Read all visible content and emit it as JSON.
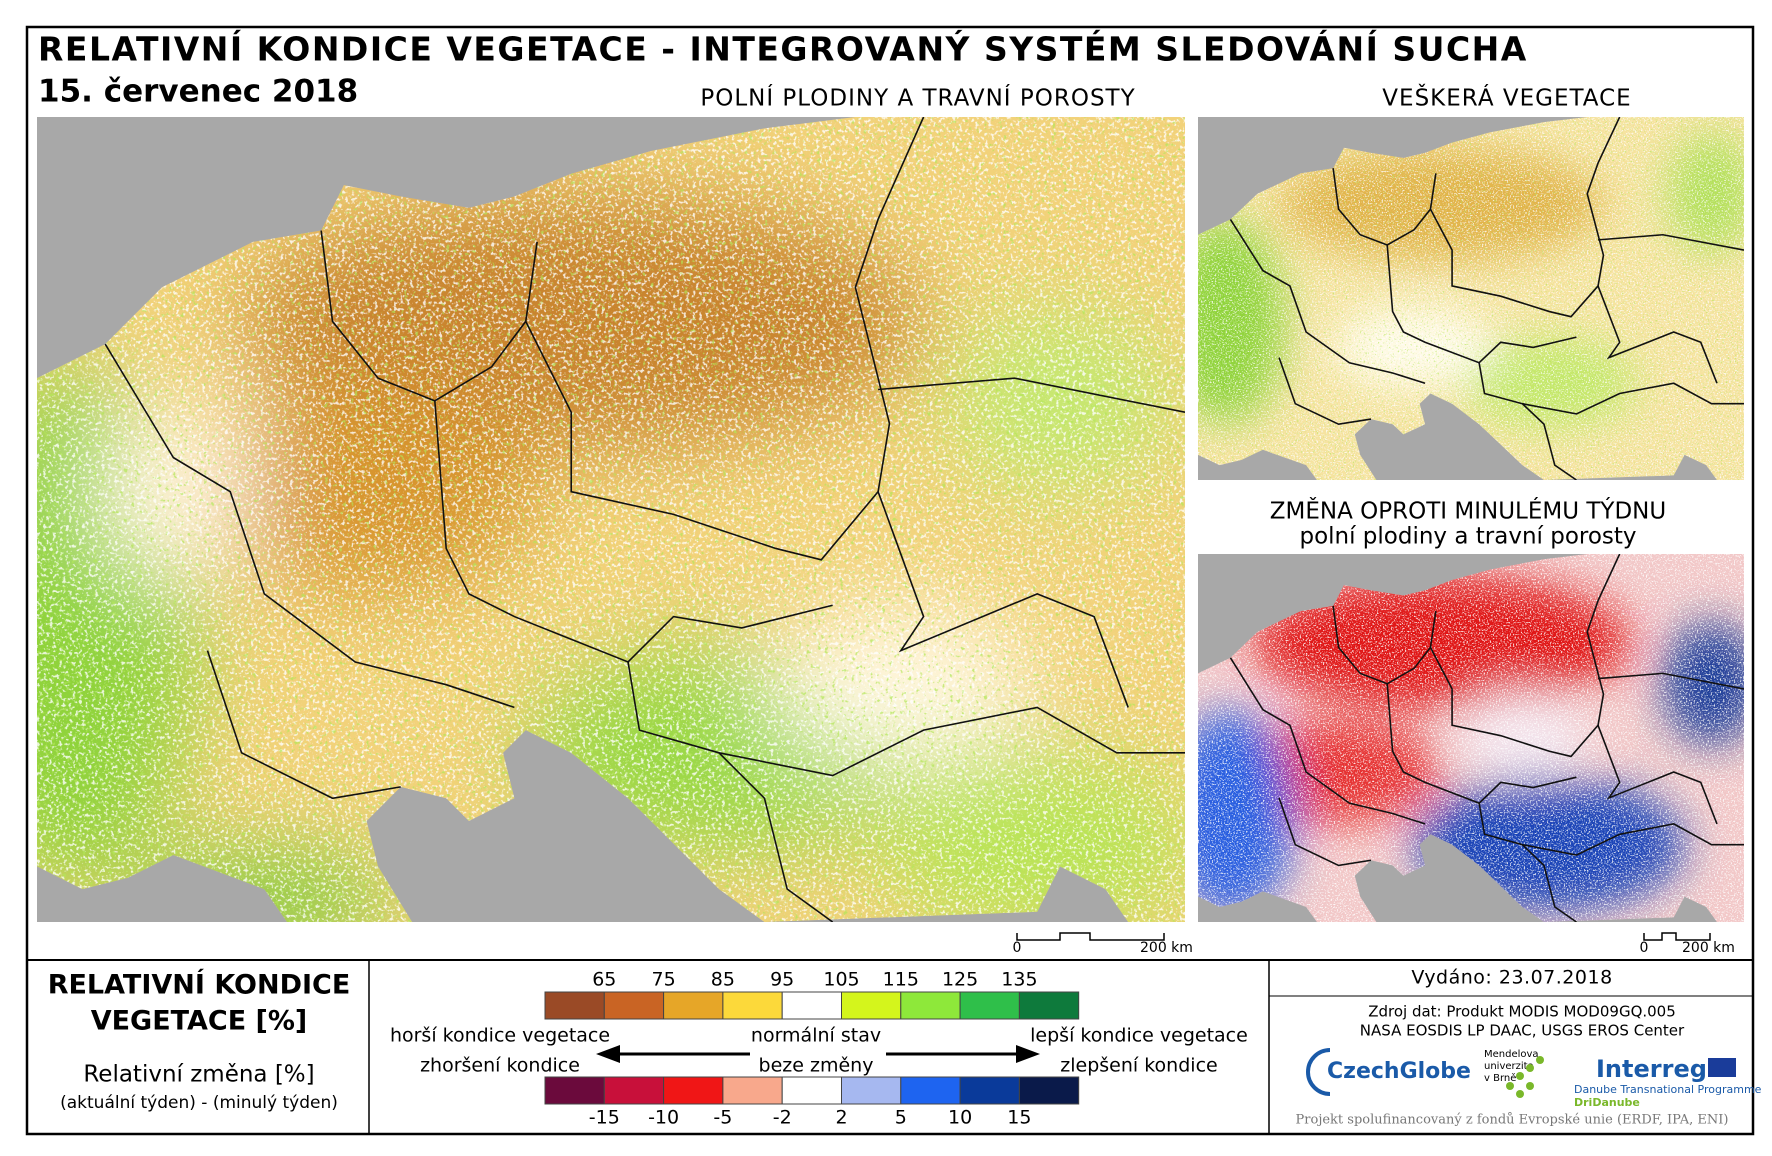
{
  "header": {
    "title": "RELATIVNÍ KONDICE VEGETACE - INTEGROVANÝ SYSTÉM SLEDOVÁNÍ SUCHA",
    "date": "15. červenec 2018"
  },
  "maps": {
    "main": {
      "title": "POLNÍ PLODINY A TRAVNÍ POROSTY",
      "scale": [
        "0",
        "200 km"
      ]
    },
    "all": {
      "title": "VEŠKERÁ VEGETACE"
    },
    "change": {
      "title": "ZMĚNA OPROTI MINULÉMU TÝDNU",
      "subtitle": "polní plodiny a travní porosty",
      "scale": [
        "0",
        "200 km"
      ]
    }
  },
  "legend": {
    "title": [
      "RELATIVNÍ KONDICE",
      "VEGETACE [%]"
    ],
    "change_title": "Relativní změna [%]",
    "change_note": "(aktuální týden) - (minulý týden)",
    "condition": {
      "ticks": [
        65,
        75,
        85,
        95,
        105,
        115,
        125,
        135
      ],
      "colors": [
        "#9a4a26",
        "#c96424",
        "#e6a628",
        "#fcd93a",
        "#ffffff",
        "#d4f51c",
        "#8ee83a",
        "#2fbf4a",
        "#0e7a3c"
      ]
    },
    "change": {
      "ticks": [
        -15,
        -10,
        -5,
        -2,
        2,
        5,
        10,
        15
      ],
      "colors": [
        "#6b0a3c",
        "#c8103a",
        "#f01616",
        "#f8a88c",
        "#ffffff",
        "#a6b8f0",
        "#1e64f0",
        "#0a3a9a",
        "#0a1a4a"
      ]
    },
    "worse": "horší kondice vegetace",
    "normal": "normální stav",
    "better": "lepší kondice vegetace",
    "worsening": "zhoršení kondice",
    "no_change": "beze změny",
    "improving": "zlepšení kondice"
  },
  "info": {
    "issued": "Vydáno: 23.07.2018",
    "source": [
      "Zdroj dat: Produkt MODIS MOD09GQ.005",
      "NASA EOSDIS LP DAAC, USGS EROS Center"
    ],
    "logos": {
      "czechglobe": "CzechGlobe",
      "mendel": [
        "Mendelova",
        "univerzita",
        "v Brně"
      ],
      "interreg": "Interreg",
      "danube": "Danube Transnational Programme",
      "dridanube": "DriDanube"
    },
    "footer": "Projekt spolufinancovaný z fondů Evropské unie (ERDF, IPA, ENI)"
  }
}
